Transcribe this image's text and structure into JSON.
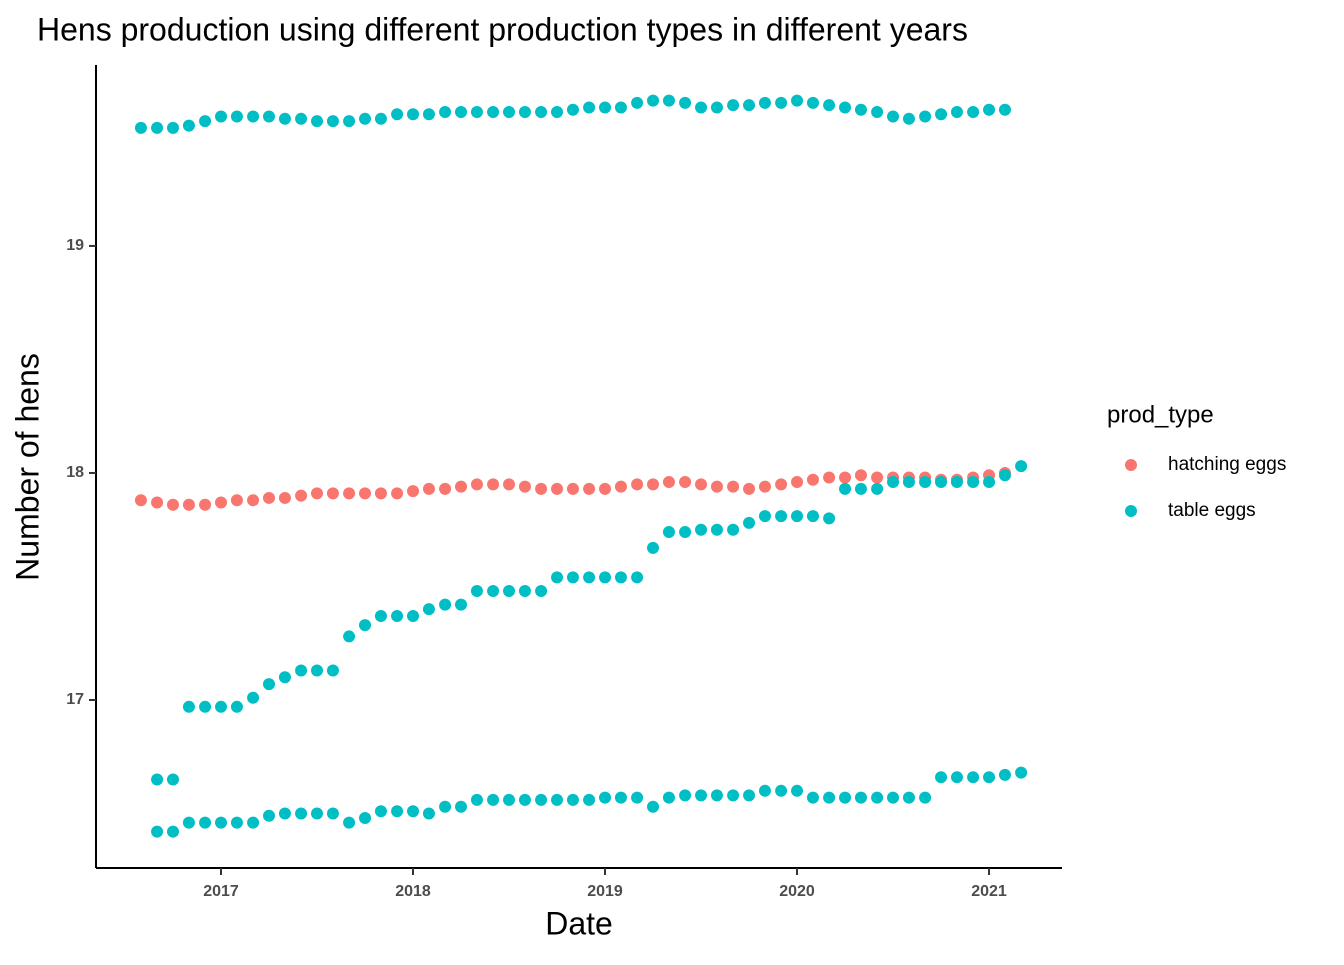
{
  "chart_data": {
    "type": "scatter",
    "title": "Hens production using different production types in different years",
    "x_label": "Date",
    "y_label": "Number of hens",
    "legend_title": "prod_type",
    "legend_position": "right",
    "xlim": [
      2016.349,
      2021.38
    ],
    "xticks": [
      2017,
      2018,
      2019,
      2020,
      2021
    ],
    "ylim": [
      16.26,
      19.797
    ],
    "yticks": [
      17,
      18,
      19
    ],
    "grid": false,
    "series": [
      {
        "name": "hatching eggs",
        "color": "#F8766D",
        "x": [
          2016.583,
          2016.667,
          2016.75,
          2016.833,
          2016.917,
          2017,
          2017.083,
          2017.167,
          2017.25,
          2017.333,
          2017.417,
          2017.5,
          2017.583,
          2017.667,
          2017.75,
          2017.833,
          2017.917,
          2018,
          2018.083,
          2018.167,
          2018.25,
          2018.333,
          2018.417,
          2018.5,
          2018.583,
          2018.667,
          2018.75,
          2018.833,
          2018.917,
          2019,
          2019.083,
          2019.167,
          2019.25,
          2019.333,
          2019.417,
          2019.5,
          2019.583,
          2019.667,
          2019.75,
          2019.833,
          2019.917,
          2020,
          2020.083,
          2020.167,
          2020.25,
          2020.333,
          2020.417,
          2020.5,
          2020.583,
          2020.667,
          2020.75,
          2020.833,
          2020.917,
          2021,
          2021.083
        ],
        "values": [
          17.88,
          17.87,
          17.86,
          17.86,
          17.86,
          17.87,
          17.88,
          17.88,
          17.89,
          17.89,
          17.9,
          17.91,
          17.91,
          17.91,
          17.91,
          17.91,
          17.91,
          17.92,
          17.93,
          17.93,
          17.94,
          17.95,
          17.95,
          17.95,
          17.94,
          17.93,
          17.93,
          17.93,
          17.93,
          17.93,
          17.94,
          17.95,
          17.95,
          17.96,
          17.96,
          17.95,
          17.94,
          17.94,
          17.93,
          17.94,
          17.95,
          17.96,
          17.97,
          17.98,
          17.98,
          17.99,
          17.98,
          17.98,
          17.98,
          17.98,
          17.97,
          17.97,
          17.98,
          17.99,
          18.0
        ]
      },
      {
        "name": "table eggs",
        "color": "#00BFC4",
        "x": [
          2016.583,
          2016.667,
          2016.75,
          2016.833,
          2016.917,
          2017,
          2017.083,
          2017.167,
          2017.25,
          2017.333,
          2017.417,
          2017.5,
          2017.583,
          2017.667,
          2017.75,
          2017.833,
          2017.917,
          2018,
          2018.083,
          2018.167,
          2018.25,
          2018.333,
          2018.417,
          2018.5,
          2018.583,
          2018.667,
          2018.75,
          2018.833,
          2018.917,
          2019,
          2019.083,
          2019.167,
          2019.25,
          2019.333,
          2019.417,
          2019.5,
          2019.583,
          2019.667,
          2019.75,
          2019.833,
          2019.917,
          2020,
          2020.083,
          2020.167,
          2020.25,
          2020.333,
          2020.417,
          2020.5,
          2020.583,
          2020.667,
          2020.75,
          2020.833,
          2020.917,
          2021,
          2021.083,
          2016.833,
          2016.917,
          2017,
          2017.083,
          2017.167,
          2017.25,
          2017.333,
          2017.417,
          2017.5,
          2017.583,
          2017.667,
          2017.75,
          2017.833,
          2017.917,
          2018,
          2018.083,
          2018.167,
          2018.25,
          2018.333,
          2018.417,
          2018.5,
          2018.583,
          2018.667,
          2018.75,
          2018.833,
          2018.917,
          2019,
          2019.083,
          2019.167,
          2019.25,
          2019.333,
          2019.417,
          2019.5,
          2019.583,
          2019.667,
          2019.75,
          2019.833,
          2019.917,
          2020,
          2020.083,
          2020.167,
          2020.25,
          2020.333,
          2020.417,
          2020.5,
          2020.583,
          2020.667,
          2020.75,
          2020.833,
          2020.917,
          2021,
          2021.083,
          2021.167,
          2016.667,
          2016.75,
          2016.833,
          2016.917,
          2017,
          2017.083,
          2017.167,
          2017.25,
          2017.333,
          2017.417,
          2017.5,
          2017.583,
          2017.667,
          2017.75,
          2017.833,
          2017.917,
          2018,
          2018.083,
          2018.167,
          2018.25,
          2018.333,
          2018.417,
          2018.5,
          2018.583,
          2018.667,
          2018.75,
          2018.833,
          2018.917,
          2019,
          2019.083,
          2019.167,
          2019.25,
          2019.333,
          2019.417,
          2019.5,
          2019.583,
          2019.667,
          2019.75,
          2019.833,
          2019.917,
          2020,
          2020.083,
          2020.167,
          2020.25,
          2020.333,
          2020.417,
          2020.5,
          2020.583,
          2020.667,
          2020.75,
          2020.833,
          2020.917,
          2021,
          2021.083,
          2021.167,
          2016.667,
          2016.75
        ],
        "values": [
          19.52,
          19.52,
          19.52,
          19.53,
          19.55,
          19.57,
          19.57,
          19.57,
          19.57,
          19.56,
          19.56,
          19.55,
          19.55,
          19.55,
          19.56,
          19.56,
          19.58,
          19.58,
          19.58,
          19.59,
          19.59,
          19.59,
          19.59,
          19.59,
          19.59,
          19.59,
          19.59,
          19.6,
          19.61,
          19.61,
          19.61,
          19.63,
          19.64,
          19.64,
          19.63,
          19.61,
          19.61,
          19.62,
          19.62,
          19.63,
          19.63,
          19.64,
          19.63,
          19.62,
          19.61,
          19.6,
          19.59,
          19.57,
          19.56,
          19.57,
          19.58,
          19.59,
          19.59,
          19.6,
          19.6,
          16.97,
          16.97,
          16.97,
          16.97,
          17.01,
          17.07,
          17.1,
          17.13,
          17.13,
          17.13,
          17.28,
          17.33,
          17.37,
          17.37,
          17.37,
          17.4,
          17.42,
          17.42,
          17.48,
          17.48,
          17.48,
          17.48,
          17.48,
          17.54,
          17.54,
          17.54,
          17.54,
          17.54,
          17.54,
          17.67,
          17.74,
          17.74,
          17.75,
          17.75,
          17.75,
          17.78,
          17.81,
          17.81,
          17.81,
          17.81,
          17.8,
          17.93,
          17.93,
          17.93,
          17.96,
          17.96,
          17.96,
          17.96,
          17.96,
          17.96,
          17.96,
          17.99,
          18.03,
          16.42,
          16.42,
          16.46,
          16.46,
          16.46,
          16.46,
          16.46,
          16.49,
          16.5,
          16.5,
          16.5,
          16.5,
          16.46,
          16.48,
          16.51,
          16.51,
          16.51,
          16.5,
          16.53,
          16.53,
          16.56,
          16.56,
          16.56,
          16.56,
          16.56,
          16.56,
          16.56,
          16.56,
          16.57,
          16.57,
          16.57,
          16.53,
          16.57,
          16.58,
          16.58,
          16.58,
          16.58,
          16.58,
          16.6,
          16.6,
          16.6,
          16.57,
          16.57,
          16.57,
          16.57,
          16.57,
          16.57,
          16.57,
          16.57,
          16.66,
          16.66,
          16.66,
          16.66,
          16.67,
          16.68,
          16.65,
          16.65
        ]
      }
    ]
  }
}
